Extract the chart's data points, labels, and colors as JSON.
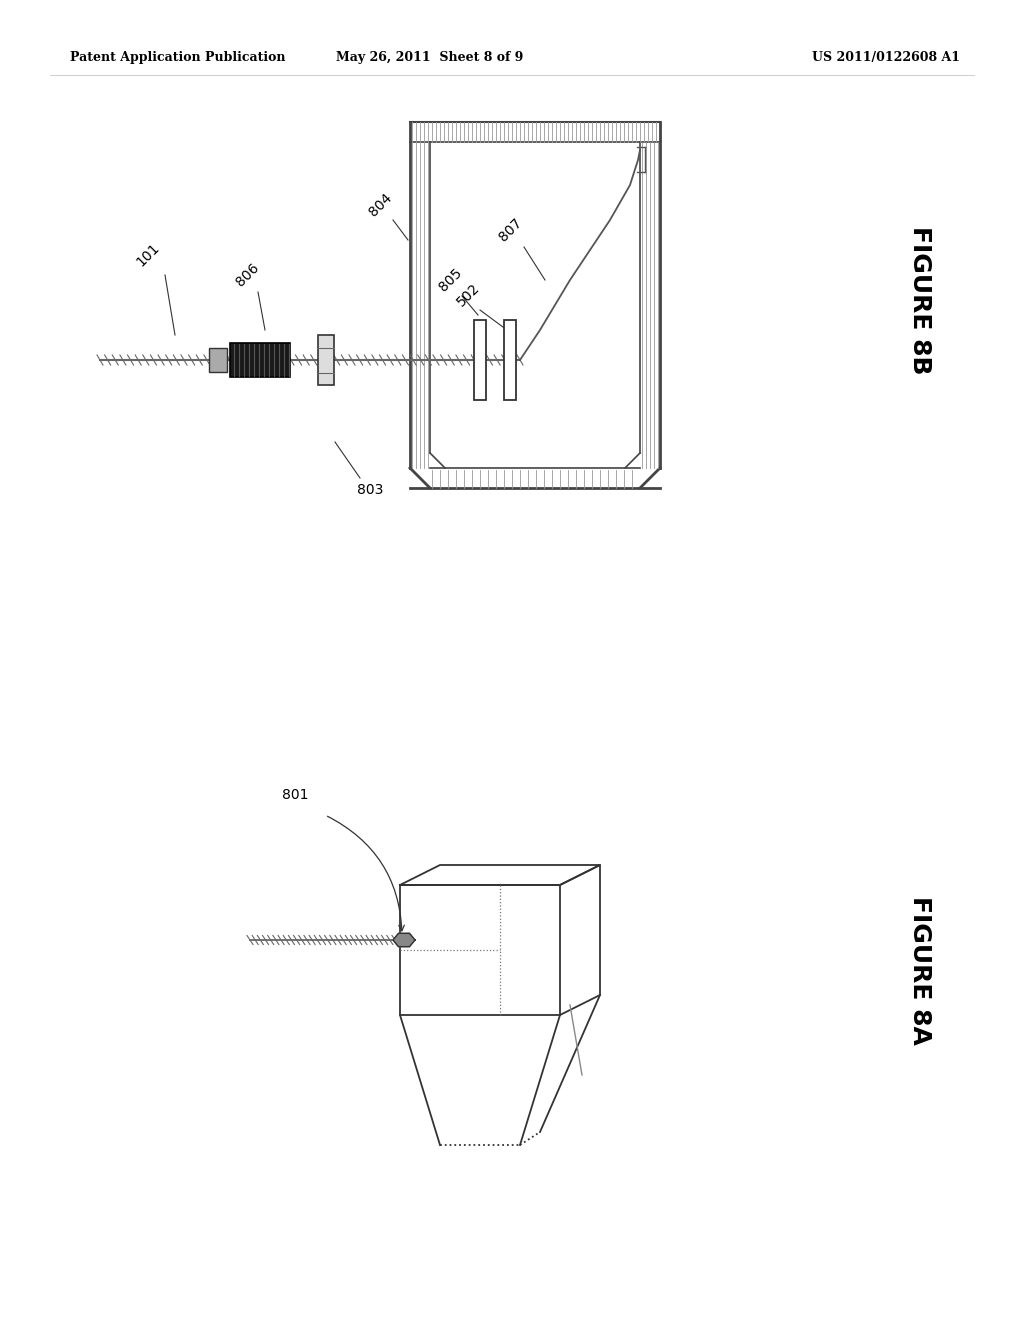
{
  "bg_color": "#ffffff",
  "header_left": "Patent Application Publication",
  "header_mid": "May 26, 2011  Sheet 8 of 9",
  "header_right": "US 2011/0122608 A1",
  "fig8b_label": "FIGURE 8B",
  "fig8a_label": "FIGURE 8A"
}
